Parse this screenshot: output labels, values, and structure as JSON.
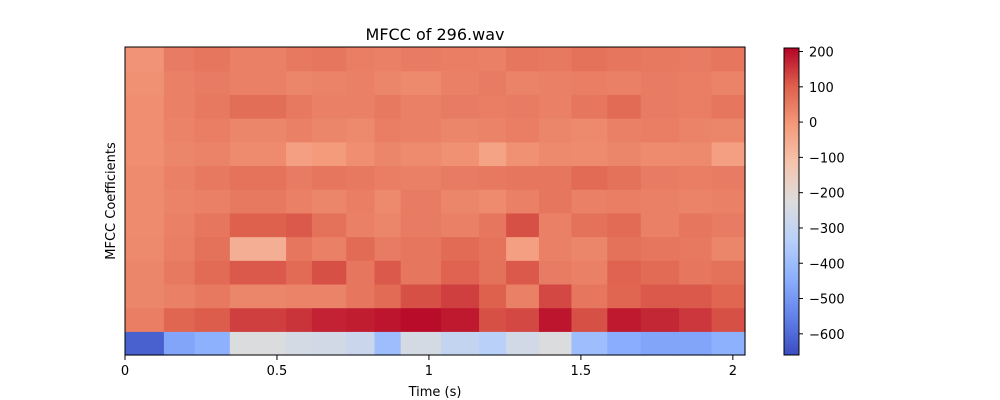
{
  "chart_data": {
    "type": "heatmap",
    "title": "MFCC of 296.wav",
    "xlabel": "Time (s)",
    "ylabel": "MFCC Coefficients",
    "xlim": [
      0,
      2.04
    ],
    "x_ticks": [
      0,
      0.5,
      1,
      1.5,
      2
    ],
    "x_tick_labels": [
      "0",
      "0.5",
      "1",
      "1.5",
      "2"
    ],
    "colorbar": {
      "colormap": "coolwarm",
      "range": [
        -660,
        210
      ],
      "ticks": [
        200,
        100,
        0,
        -100,
        -200,
        -300,
        -400,
        -500,
        -600
      ],
      "tick_labels": [
        "200",
        "100",
        "0",
        "−100",
        "−200",
        "−300",
        "−400",
        "−500",
        "−600"
      ]
    },
    "n_coefficients": 13,
    "frame_times": [
      0.0,
      0.128,
      0.229,
      0.345,
      0.53,
      0.615,
      0.728,
      0.821,
      0.907,
      1.04,
      1.165,
      1.254,
      1.362,
      1.469,
      1.587,
      1.697,
      1.823,
      1.93
    ],
    "values_bottom_to_top": [
      [
        -620,
        -470,
        -440,
        -230,
        -250,
        -260,
        -280,
        -400,
        -250,
        -300,
        -330,
        -260,
        -230,
        -400,
        -450,
        -470,
        -470,
        -440
      ],
      [
        45,
        90,
        105,
        140,
        155,
        175,
        180,
        190,
        200,
        185,
        120,
        130,
        190,
        120,
        185,
        170,
        150,
        120
      ],
      [
        30,
        40,
        55,
        30,
        35,
        35,
        60,
        80,
        120,
        140,
        100,
        40,
        130,
        60,
        90,
        110,
        110,
        90
      ],
      [
        30,
        55,
        80,
        110,
        80,
        120,
        60,
        110,
        60,
        95,
        70,
        110,
        50,
        40,
        95,
        80,
        60,
        70
      ],
      [
        25,
        45,
        70,
        -60,
        60,
        40,
        80,
        50,
        60,
        80,
        65,
        -20,
        40,
        30,
        70,
        60,
        55,
        30
      ],
      [
        20,
        40,
        60,
        100,
        110,
        70,
        40,
        30,
        50,
        40,
        60,
        120,
        40,
        70,
        80,
        40,
        60,
        50
      ],
      [
        20,
        35,
        40,
        55,
        40,
        30,
        45,
        25,
        50,
        30,
        20,
        40,
        60,
        40,
        45,
        40,
        35,
        40
      ],
      [
        20,
        40,
        55,
        65,
        50,
        60,
        55,
        45,
        40,
        50,
        55,
        60,
        60,
        80,
        70,
        50,
        45,
        50
      ],
      [
        15,
        30,
        35,
        20,
        -20,
        -10,
        15,
        30,
        20,
        10,
        -30,
        10,
        25,
        20,
        30,
        20,
        25,
        -20
      ],
      [
        15,
        35,
        45,
        30,
        40,
        30,
        25,
        45,
        40,
        30,
        35,
        45,
        30,
        25,
        40,
        45,
        35,
        30
      ],
      [
        15,
        40,
        55,
        75,
        55,
        40,
        40,
        55,
        40,
        50,
        45,
        50,
        40,
        60,
        80,
        50,
        45,
        60
      ],
      [
        10,
        40,
        50,
        40,
        30,
        35,
        40,
        30,
        25,
        40,
        50,
        35,
        40,
        45,
        40,
        50,
        45,
        35
      ],
      [
        5,
        50,
        60,
        40,
        55,
        60,
        45,
        40,
        50,
        45,
        40,
        60,
        55,
        70,
        60,
        55,
        50,
        60
      ]
    ]
  }
}
